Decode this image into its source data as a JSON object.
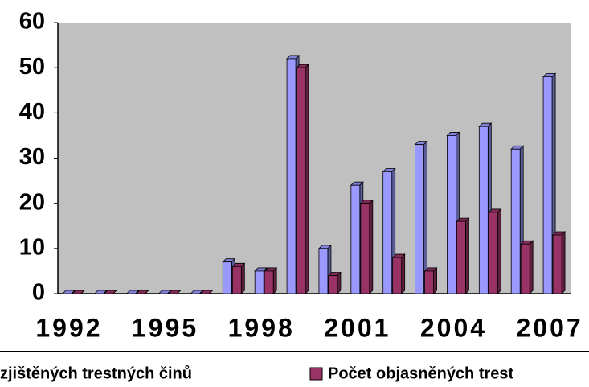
{
  "chart_data": {
    "type": "bar",
    "categories": [
      "1992",
      null,
      null,
      "1995",
      null,
      null,
      "1998",
      null,
      null,
      "2001",
      null,
      null,
      "2004",
      null,
      null,
      "2007"
    ],
    "series": [
      {
        "name": "zjištěných trestných činů",
        "color": "#9999ff",
        "values": [
          0,
          0,
          0,
          0,
          0,
          7,
          5,
          52,
          10,
          24,
          27,
          33,
          35,
          37,
          32,
          48
        ]
      },
      {
        "name": "Počet objasněných trest",
        "color": "#993366",
        "values": [
          0,
          0,
          0,
          0,
          0,
          6,
          5,
          50,
          4,
          20,
          8,
          5,
          16,
          18,
          11,
          13
        ]
      }
    ],
    "ylim": [
      0,
      60
    ],
    "yticks": [
      0,
      10,
      20,
      30,
      40,
      50,
      60
    ],
    "grid": false,
    "plot_background": "#c0c0c0",
    "legend": "bottom"
  }
}
